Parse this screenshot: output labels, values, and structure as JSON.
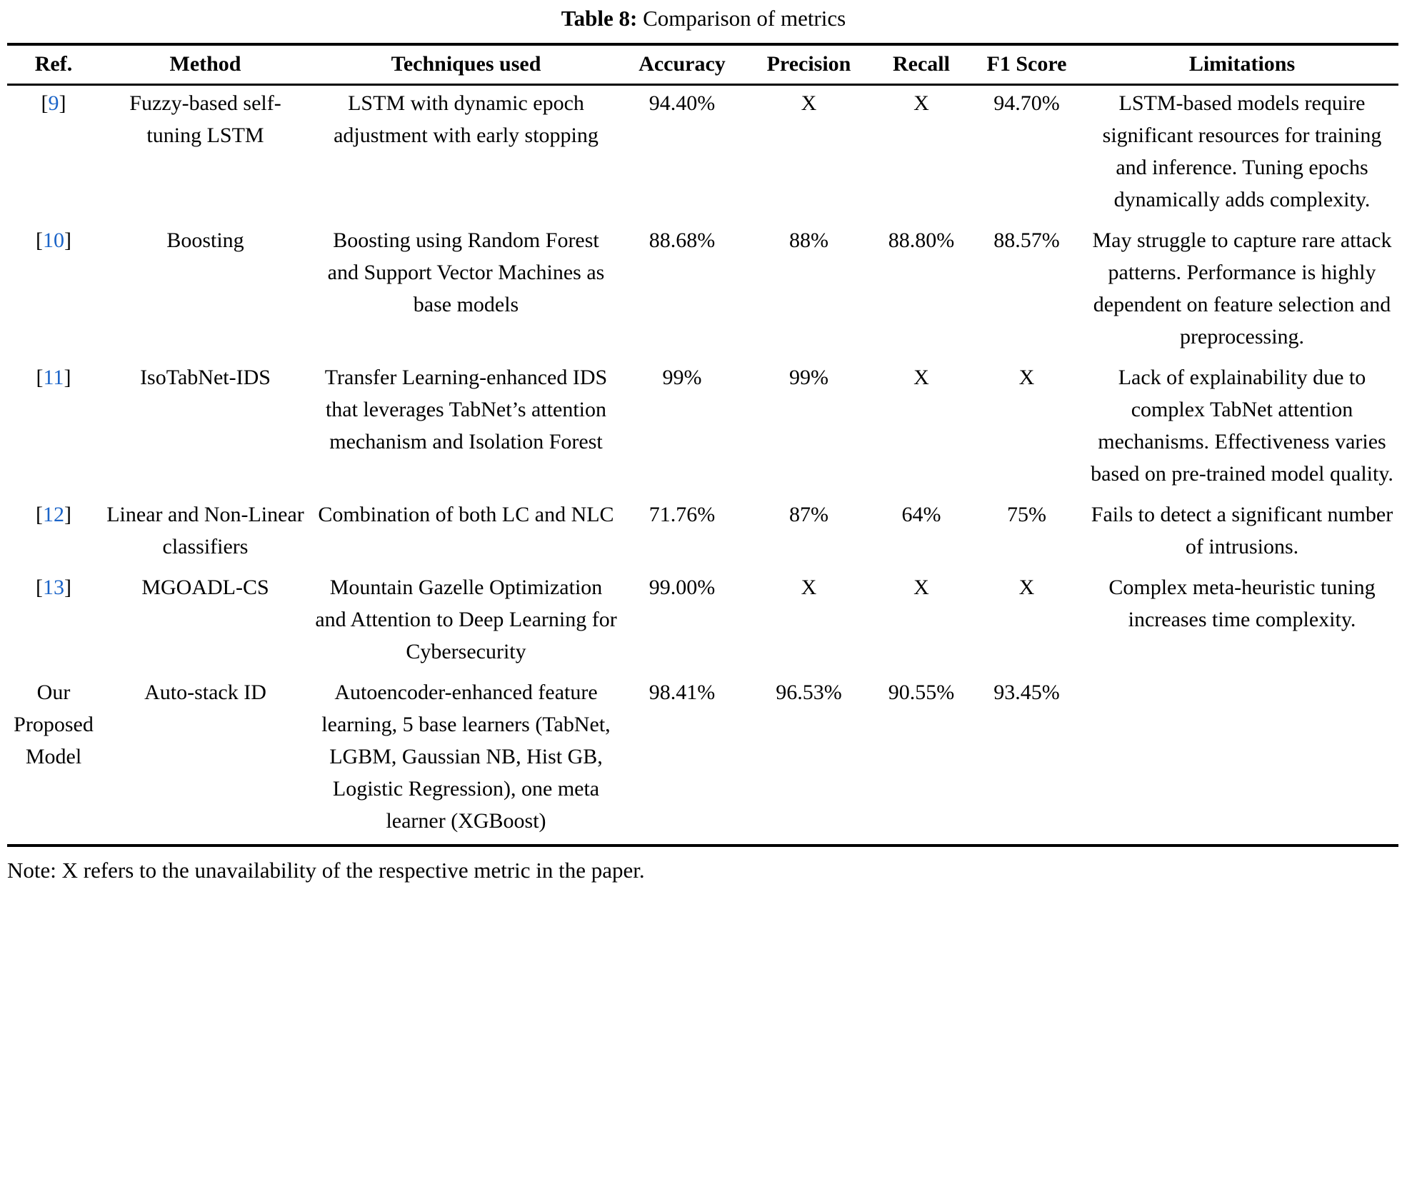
{
  "title": {
    "label": "Table 8:",
    "caption": " Comparison of metrics"
  },
  "citation": {
    "open": "[",
    "close": "]"
  },
  "colors": {
    "citation_blue": "#1b64c8",
    "text": "#000000",
    "background": "#ffffff"
  },
  "columns": [
    "Ref.",
    "Method",
    "Techniques used",
    "Accuracy",
    "Precision",
    "Recall",
    "F1 Score",
    "Limitations"
  ],
  "rows": [
    {
      "ref_num": "9",
      "method": "Fuzzy-based self-tuning LSTM",
      "techniques": "LSTM with dynamic epoch adjustment with early stopping",
      "accuracy": "94.40%",
      "precision": "X",
      "recall": "X",
      "f1": "94.70%",
      "limitations": "LSTM-based models require significant resources for training and inference. Tuning epochs dynamically adds complexity."
    },
    {
      "ref_num": "10",
      "method": "Boosting",
      "techniques": "Boosting using Random Forest and Support Vector Machines as base models",
      "accuracy": "88.68%",
      "precision": "88%",
      "recall": "88.80%",
      "f1": "88.57%",
      "limitations": "May struggle to capture rare attack patterns. Performance is highly dependent on feature selection and preprocessing."
    },
    {
      "ref_num": "11",
      "method": "IsoTabNet-IDS",
      "techniques": "Transfer Learning-enhanced IDS that leverages TabNet’s attention mechanism and Isolation Forest",
      "accuracy": "99%",
      "precision": "99%",
      "recall": "X",
      "f1": "X",
      "limitations": "Lack of explainability due to complex TabNet attention mechanisms. Effectiveness varies based on pre-trained model quality."
    },
    {
      "ref_num": "12",
      "method": "Linear and Non-Linear classifiers",
      "techniques": "Combination of both LC and NLC",
      "accuracy": "71.76%",
      "precision": "87%",
      "recall": "64%",
      "f1": "75%",
      "limitations": "Fails to detect a significant number of intrusions."
    },
    {
      "ref_num": "13",
      "method": "MGOADL-CS",
      "techniques": "Mountain Gazelle Optimization and Attention to Deep Learning for Cybersecurity",
      "accuracy": "99.00%",
      "precision": "X",
      "recall": "X",
      "f1": "X",
      "limitations": "Complex meta-heuristic tuning increases time complexity."
    },
    {
      "ref_text": "Our Proposed Model",
      "method": "Auto-stack ID",
      "techniques": "Autoencoder-enhanced feature learning, 5 base learners (TabNet, LGBM, Gaussian NB, Hist GB, Logistic Regression), one meta learner (XGBoost)",
      "accuracy": "98.41%",
      "precision": "96.53%",
      "recall": "90.55%",
      "f1": "93.45%",
      "limitations": ""
    }
  ],
  "note": "Note: X refers to the unavailability of the respective metric in the paper."
}
